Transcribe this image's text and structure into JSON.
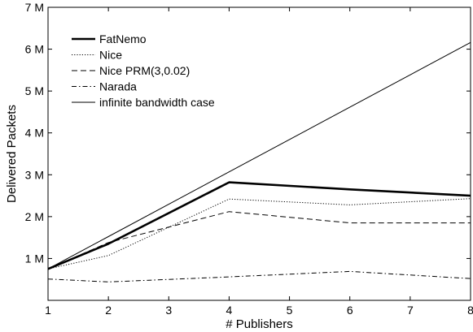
{
  "chart_data": {
    "type": "line",
    "title": "",
    "xlabel": "# Publishers",
    "ylabel": "Delivered Packets",
    "xlim": [
      1,
      8
    ],
    "ylim": [
      0,
      7000000
    ],
    "x_ticks": [
      1,
      2,
      3,
      4,
      5,
      6,
      7,
      8
    ],
    "x_tick_labels": [
      "1",
      "2",
      "3",
      "4",
      "5",
      "6",
      "7",
      "8"
    ],
    "y_ticks": [
      1000000,
      2000000,
      3000000,
      4000000,
      5000000,
      6000000,
      7000000
    ],
    "y_tick_labels": [
      "1 M",
      "2 M",
      "3 M",
      "4 M",
      "5 M",
      "6 M",
      "7 M"
    ],
    "grid": false,
    "legend_position": "top-left",
    "series": [
      {
        "name": "FatNemo",
        "style": "thick-solid",
        "x": [
          1,
          2,
          4,
          6,
          8
        ],
        "y": [
          750000,
          1350000,
          2820000,
          2650000,
          2500000
        ]
      },
      {
        "name": "Nice",
        "style": "dotted",
        "x": [
          1,
          2,
          4,
          6,
          8
        ],
        "y": [
          750000,
          1070000,
          2420000,
          2280000,
          2430000
        ]
      },
      {
        "name": "Nice PRM(3,0.02)",
        "style": "dashed",
        "x": [
          1,
          2,
          4,
          6,
          8
        ],
        "y": [
          750000,
          1380000,
          2120000,
          1850000,
          1850000
        ]
      },
      {
        "name": "Narada",
        "style": "dash-dot",
        "x": [
          1,
          2,
          4,
          6,
          8
        ],
        "y": [
          510000,
          440000,
          560000,
          690000,
          520000
        ]
      },
      {
        "name": "infinite bandwidth case",
        "style": "thin-solid",
        "x": [
          1,
          8
        ],
        "y": [
          750000,
          6160000
        ]
      }
    ]
  }
}
